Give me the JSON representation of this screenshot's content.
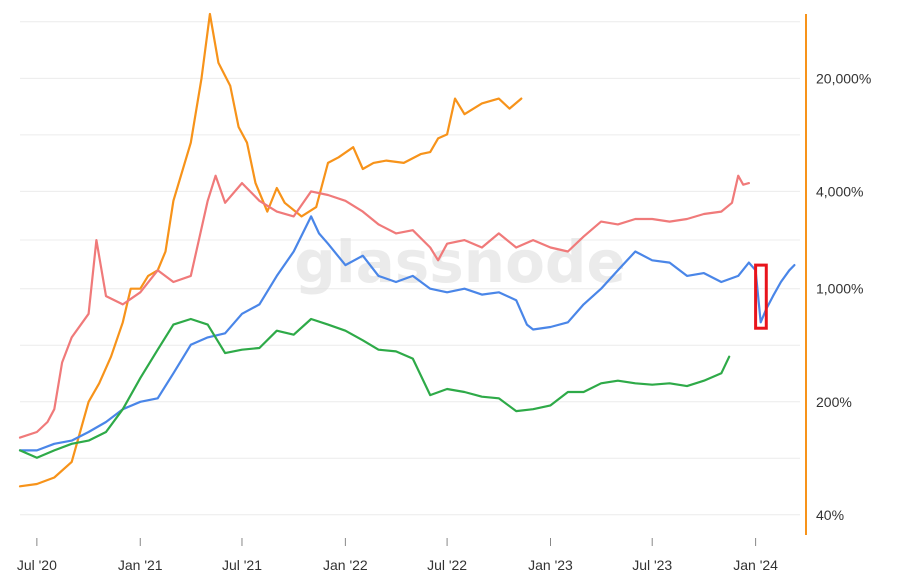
{
  "watermark": "glassnode",
  "chart_data": {
    "type": "line",
    "title": "",
    "xlabel": "",
    "ylabel": "",
    "y_scale": "log",
    "y_axis_side": "right",
    "y_ticks": [
      {
        "value": 40,
        "label": "40%"
      },
      {
        "value": 200,
        "label": "200%"
      },
      {
        "value": 1000,
        "label": "1,000%"
      },
      {
        "value": 4000,
        "label": "4,000%"
      },
      {
        "value": 20000,
        "label": "20,000%"
      }
    ],
    "x_ticks": [
      {
        "date": "2020-07-01",
        "label": "Jul '20"
      },
      {
        "date": "2021-01-01",
        "label": "Jan '21"
      },
      {
        "date": "2021-07-01",
        "label": "Jul '21"
      },
      {
        "date": "2022-01-01",
        "label": "Jan '22"
      },
      {
        "date": "2022-07-01",
        "label": "Jul '22"
      },
      {
        "date": "2023-01-01",
        "label": "Jan '23"
      },
      {
        "date": "2023-07-01",
        "label": "Jul '23"
      },
      {
        "date": "2024-01-01",
        "label": "Jan '24"
      }
    ],
    "xlim": [
      "2020-06-01",
      "2024-03-20"
    ],
    "ylim": [
      30,
      50000
    ],
    "grid": true,
    "axis_color": "#f7931a",
    "highlight_box": {
      "x_start": "2024-01-01",
      "x_end": "2024-01-20",
      "y_low": 570,
      "y_high": 1400,
      "color": "#e8141c"
    },
    "series": [
      {
        "color": "#f7931a",
        "points": [
          [
            "2020-06-01",
            60
          ],
          [
            "2020-07-01",
            62
          ],
          [
            "2020-08-01",
            68
          ],
          [
            "2020-09-01",
            85
          ],
          [
            "2020-10-01",
            200
          ],
          [
            "2020-10-20",
            260
          ],
          [
            "2020-11-10",
            380
          ],
          [
            "2020-12-01",
            620
          ],
          [
            "2020-12-15",
            1000
          ],
          [
            "2021-01-01",
            1000
          ],
          [
            "2021-01-15",
            1200
          ],
          [
            "2021-02-01",
            1300
          ],
          [
            "2021-02-15",
            1700
          ],
          [
            "2021-03-01",
            3500
          ],
          [
            "2021-04-01",
            8000
          ],
          [
            "2021-04-20",
            20000
          ],
          [
            "2021-05-05",
            50000
          ],
          [
            "2021-05-20",
            25000
          ],
          [
            "2021-06-10",
            18000
          ],
          [
            "2021-06-25",
            10000
          ],
          [
            "2021-07-10",
            8000
          ],
          [
            "2021-07-25",
            4500
          ],
          [
            "2021-08-15",
            3000
          ],
          [
            "2021-09-01",
            4200
          ],
          [
            "2021-09-15",
            3400
          ],
          [
            "2021-10-15",
            2800
          ],
          [
            "2021-11-10",
            3200
          ],
          [
            "2021-12-01",
            6000
          ],
          [
            "2021-12-20",
            6500
          ],
          [
            "2022-01-15",
            7500
          ],
          [
            "2022-02-01",
            5500
          ],
          [
            "2022-02-20",
            6000
          ],
          [
            "2022-03-15",
            6200
          ],
          [
            "2022-04-15",
            6000
          ],
          [
            "2022-05-15",
            6800
          ],
          [
            "2022-06-01",
            7000
          ],
          [
            "2022-06-15",
            8500
          ],
          [
            "2022-07-01",
            9000
          ],
          [
            "2022-07-15",
            15000
          ],
          [
            "2022-08-01",
            12000
          ],
          [
            "2022-09-01",
            14000
          ],
          [
            "2022-10-01",
            15000
          ],
          [
            "2022-10-20",
            13000
          ],
          [
            "2022-11-10",
            15000
          ]
        ]
      },
      {
        "color": "#f07a7a",
        "points": [
          [
            "2020-06-01",
            120
          ],
          [
            "2020-07-01",
            130
          ],
          [
            "2020-07-20",
            150
          ],
          [
            "2020-08-01",
            180
          ],
          [
            "2020-08-15",
            350
          ],
          [
            "2020-09-01",
            500
          ],
          [
            "2020-10-01",
            700
          ],
          [
            "2020-10-15",
            2000
          ],
          [
            "2020-11-01",
            900
          ],
          [
            "2020-12-01",
            800
          ],
          [
            "2021-01-01",
            950
          ],
          [
            "2021-02-01",
            1300
          ],
          [
            "2021-03-01",
            1100
          ],
          [
            "2021-04-01",
            1200
          ],
          [
            "2021-05-01",
            3500
          ],
          [
            "2021-05-15",
            5000
          ],
          [
            "2021-06-01",
            3400
          ],
          [
            "2021-07-01",
            4500
          ],
          [
            "2021-08-01",
            3500
          ],
          [
            "2021-09-01",
            3000
          ],
          [
            "2021-10-01",
            2800
          ],
          [
            "2021-11-01",
            4000
          ],
          [
            "2021-12-01",
            3800
          ],
          [
            "2022-01-01",
            3500
          ],
          [
            "2022-02-01",
            3000
          ],
          [
            "2022-03-01",
            2500
          ],
          [
            "2022-04-01",
            2200
          ],
          [
            "2022-05-01",
            2300
          ],
          [
            "2022-06-01",
            1800
          ],
          [
            "2022-06-15",
            1500
          ],
          [
            "2022-07-01",
            1900
          ],
          [
            "2022-08-01",
            2000
          ],
          [
            "2022-09-01",
            1800
          ],
          [
            "2022-10-01",
            2200
          ],
          [
            "2022-11-01",
            1800
          ],
          [
            "2022-12-01",
            2000
          ],
          [
            "2023-01-01",
            1800
          ],
          [
            "2023-02-01",
            1700
          ],
          [
            "2023-03-01",
            2100
          ],
          [
            "2023-04-01",
            2600
          ],
          [
            "2023-05-01",
            2500
          ],
          [
            "2023-06-01",
            2700
          ],
          [
            "2023-07-01",
            2700
          ],
          [
            "2023-08-01",
            2600
          ],
          [
            "2023-09-01",
            2700
          ],
          [
            "2023-10-01",
            2900
          ],
          [
            "2023-11-01",
            3000
          ],
          [
            "2023-11-20",
            3400
          ],
          [
            "2023-12-01",
            5000
          ],
          [
            "2023-12-10",
            4400
          ],
          [
            "2023-12-20",
            4500
          ]
        ]
      },
      {
        "color": "#4a86e8",
        "points": [
          [
            "2020-06-01",
            100
          ],
          [
            "2020-07-01",
            100
          ],
          [
            "2020-08-01",
            110
          ],
          [
            "2020-09-01",
            115
          ],
          [
            "2020-10-01",
            130
          ],
          [
            "2020-11-01",
            150
          ],
          [
            "2020-12-01",
            180
          ],
          [
            "2021-01-01",
            200
          ],
          [
            "2021-02-01",
            210
          ],
          [
            "2021-03-01",
            300
          ],
          [
            "2021-04-01",
            450
          ],
          [
            "2021-05-01",
            500
          ],
          [
            "2021-06-01",
            530
          ],
          [
            "2021-07-01",
            700
          ],
          [
            "2021-08-01",
            800
          ],
          [
            "2021-09-01",
            1200
          ],
          [
            "2021-10-01",
            1700
          ],
          [
            "2021-11-01",
            2800
          ],
          [
            "2021-11-15",
            2200
          ],
          [
            "2021-12-01",
            1900
          ],
          [
            "2022-01-01",
            1400
          ],
          [
            "2022-02-01",
            1600
          ],
          [
            "2022-03-01",
            1200
          ],
          [
            "2022-04-01",
            1100
          ],
          [
            "2022-05-01",
            1200
          ],
          [
            "2022-06-01",
            1000
          ],
          [
            "2022-07-01",
            950
          ],
          [
            "2022-08-01",
            1000
          ],
          [
            "2022-09-01",
            920
          ],
          [
            "2022-10-01",
            950
          ],
          [
            "2022-11-01",
            850
          ],
          [
            "2022-11-20",
            600
          ],
          [
            "2022-12-01",
            560
          ],
          [
            "2023-01-01",
            580
          ],
          [
            "2023-02-01",
            620
          ],
          [
            "2023-03-01",
            800
          ],
          [
            "2023-04-01",
            1000
          ],
          [
            "2023-05-01",
            1300
          ],
          [
            "2023-06-01",
            1700
          ],
          [
            "2023-07-01",
            1500
          ],
          [
            "2023-08-01",
            1450
          ],
          [
            "2023-09-01",
            1200
          ],
          [
            "2023-10-01",
            1250
          ],
          [
            "2023-11-01",
            1100
          ],
          [
            "2023-12-01",
            1200
          ],
          [
            "2023-12-20",
            1450
          ],
          [
            "2024-01-01",
            1300
          ],
          [
            "2024-01-10",
            620
          ],
          [
            "2024-01-20",
            750
          ],
          [
            "2024-02-01",
            900
          ],
          [
            "2024-02-15",
            1100
          ],
          [
            "2024-03-01",
            1300
          ],
          [
            "2024-03-10",
            1400
          ]
        ]
      },
      {
        "color": "#2eaa48",
        "points": [
          [
            "2020-06-01",
            100
          ],
          [
            "2020-07-01",
            90
          ],
          [
            "2020-08-01",
            100
          ],
          [
            "2020-09-01",
            110
          ],
          [
            "2020-10-01",
            115
          ],
          [
            "2020-11-01",
            130
          ],
          [
            "2020-12-01",
            180
          ],
          [
            "2021-01-01",
            280
          ],
          [
            "2021-02-01",
            420
          ],
          [
            "2021-03-01",
            600
          ],
          [
            "2021-04-01",
            650
          ],
          [
            "2021-05-01",
            600
          ],
          [
            "2021-06-01",
            400
          ],
          [
            "2021-07-01",
            420
          ],
          [
            "2021-08-01",
            430
          ],
          [
            "2021-09-01",
            550
          ],
          [
            "2021-10-01",
            520
          ],
          [
            "2021-11-01",
            650
          ],
          [
            "2021-12-01",
            600
          ],
          [
            "2022-01-01",
            550
          ],
          [
            "2022-02-01",
            480
          ],
          [
            "2022-03-01",
            420
          ],
          [
            "2022-04-01",
            410
          ],
          [
            "2022-05-01",
            370
          ],
          [
            "2022-06-01",
            220
          ],
          [
            "2022-07-01",
            240
          ],
          [
            "2022-08-01",
            230
          ],
          [
            "2022-09-01",
            215
          ],
          [
            "2022-10-01",
            210
          ],
          [
            "2022-11-01",
            175
          ],
          [
            "2022-12-01",
            180
          ],
          [
            "2023-01-01",
            190
          ],
          [
            "2023-02-01",
            230
          ],
          [
            "2023-03-01",
            230
          ],
          [
            "2023-04-01",
            260
          ],
          [
            "2023-05-01",
            270
          ],
          [
            "2023-06-01",
            260
          ],
          [
            "2023-07-01",
            255
          ],
          [
            "2023-08-01",
            260
          ],
          [
            "2023-09-01",
            250
          ],
          [
            "2023-10-01",
            270
          ],
          [
            "2023-11-01",
            300
          ],
          [
            "2023-11-15",
            380
          ]
        ]
      }
    ]
  }
}
